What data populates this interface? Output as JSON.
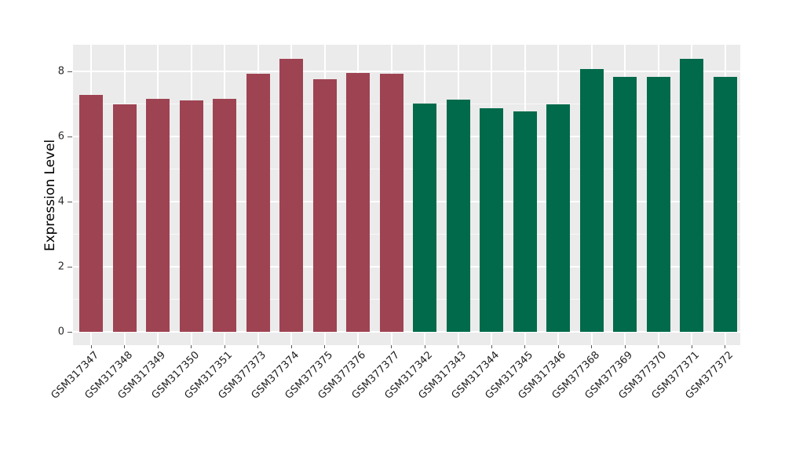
{
  "chart_data": {
    "type": "bar",
    "title": "",
    "xlabel": "",
    "ylabel": "Expression Level",
    "categories": [
      "GSM317347",
      "GSM317348",
      "GSM317349",
      "GSM317350",
      "GSM317351",
      "GSM377373",
      "GSM377374",
      "GSM377375",
      "GSM377376",
      "GSM377377",
      "GSM317342",
      "GSM317343",
      "GSM317344",
      "GSM317345",
      "GSM317346",
      "GSM377368",
      "GSM377369",
      "GSM377370",
      "GSM377371",
      "GSM377372"
    ],
    "values": [
      7.28,
      6.98,
      7.16,
      7.11,
      7.16,
      7.93,
      8.38,
      7.77,
      7.95,
      7.93,
      7.02,
      7.12,
      6.86,
      6.76,
      6.99,
      8.07,
      7.83,
      7.83,
      8.38,
      7.83
    ],
    "bar_colors": [
      "#9E4352",
      "#9E4352",
      "#9E4352",
      "#9E4352",
      "#9E4352",
      "#9E4352",
      "#9E4352",
      "#9E4352",
      "#9E4352",
      "#9E4352",
      "#006A4B",
      "#006A4B",
      "#006A4B",
      "#006A4B",
      "#006A4B",
      "#006A4B",
      "#006A4B",
      "#006A4B",
      "#006A4B",
      "#006A4B"
    ],
    "yticks_major": [
      0,
      2,
      4,
      6,
      8
    ],
    "yticks_minor": [
      1,
      3,
      5,
      7
    ],
    "ylim": [
      -0.42,
      8.82
    ],
    "grid": "on",
    "legend": "none"
  },
  "style": {
    "panel_background": "#EBEBEB",
    "grid_color": "#FFFFFF",
    "group1_color": "#9E4352",
    "group2_color": "#006A4B",
    "tick_color": "#555555",
    "figure_background": "#FFFFFF"
  }
}
